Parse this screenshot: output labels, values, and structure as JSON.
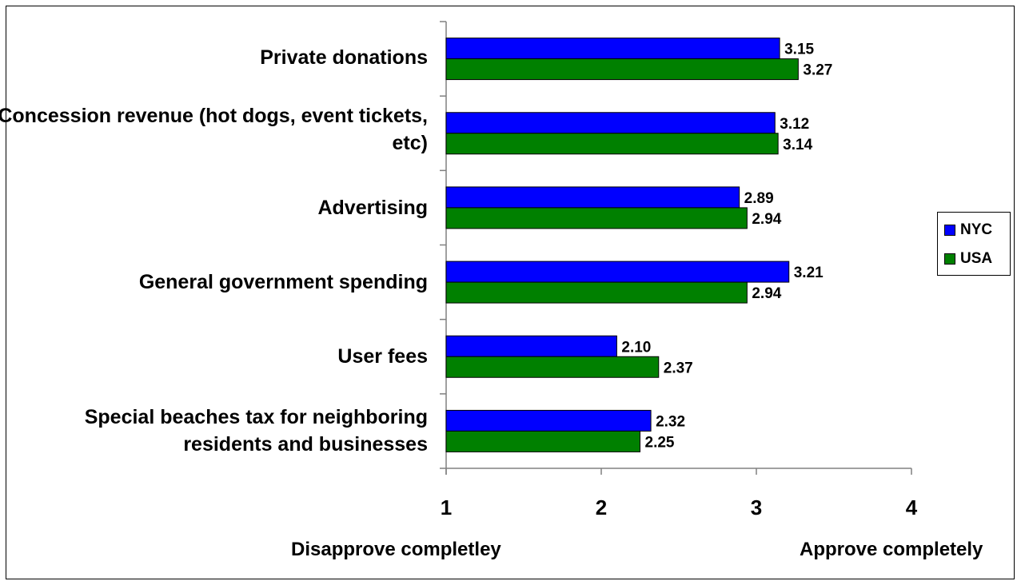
{
  "chart_data": {
    "type": "bar",
    "orientation": "horizontal",
    "categories": [
      "Private donations",
      "Concession revenue (hot dogs, event tickets, etc)",
      "Advertising",
      "General government spending",
      "User fees",
      "Special beaches tax for neighboring residents and businesses"
    ],
    "series": [
      {
        "name": "NYC",
        "color": "#0000ff",
        "values": [
          3.15,
          3.12,
          2.89,
          3.21,
          2.1,
          2.32
        ],
        "labels": [
          "3.15",
          "3.12",
          "2.89",
          "3.21",
          "2.10",
          "2.32"
        ]
      },
      {
        "name": "USA",
        "color": "#008000",
        "values": [
          3.27,
          3.14,
          2.94,
          2.94,
          2.37,
          2.25
        ],
        "labels": [
          "3.27",
          "3.14",
          "2.94",
          "2.94",
          "2.37",
          "2.25"
        ]
      }
    ],
    "xlim": [
      1,
      4
    ],
    "xticks": [
      "1",
      "2",
      "3",
      "4"
    ],
    "x_annotations": {
      "left": "Disapprove completley",
      "right": "Approve completely"
    },
    "legend": "right",
    "grid": false
  }
}
